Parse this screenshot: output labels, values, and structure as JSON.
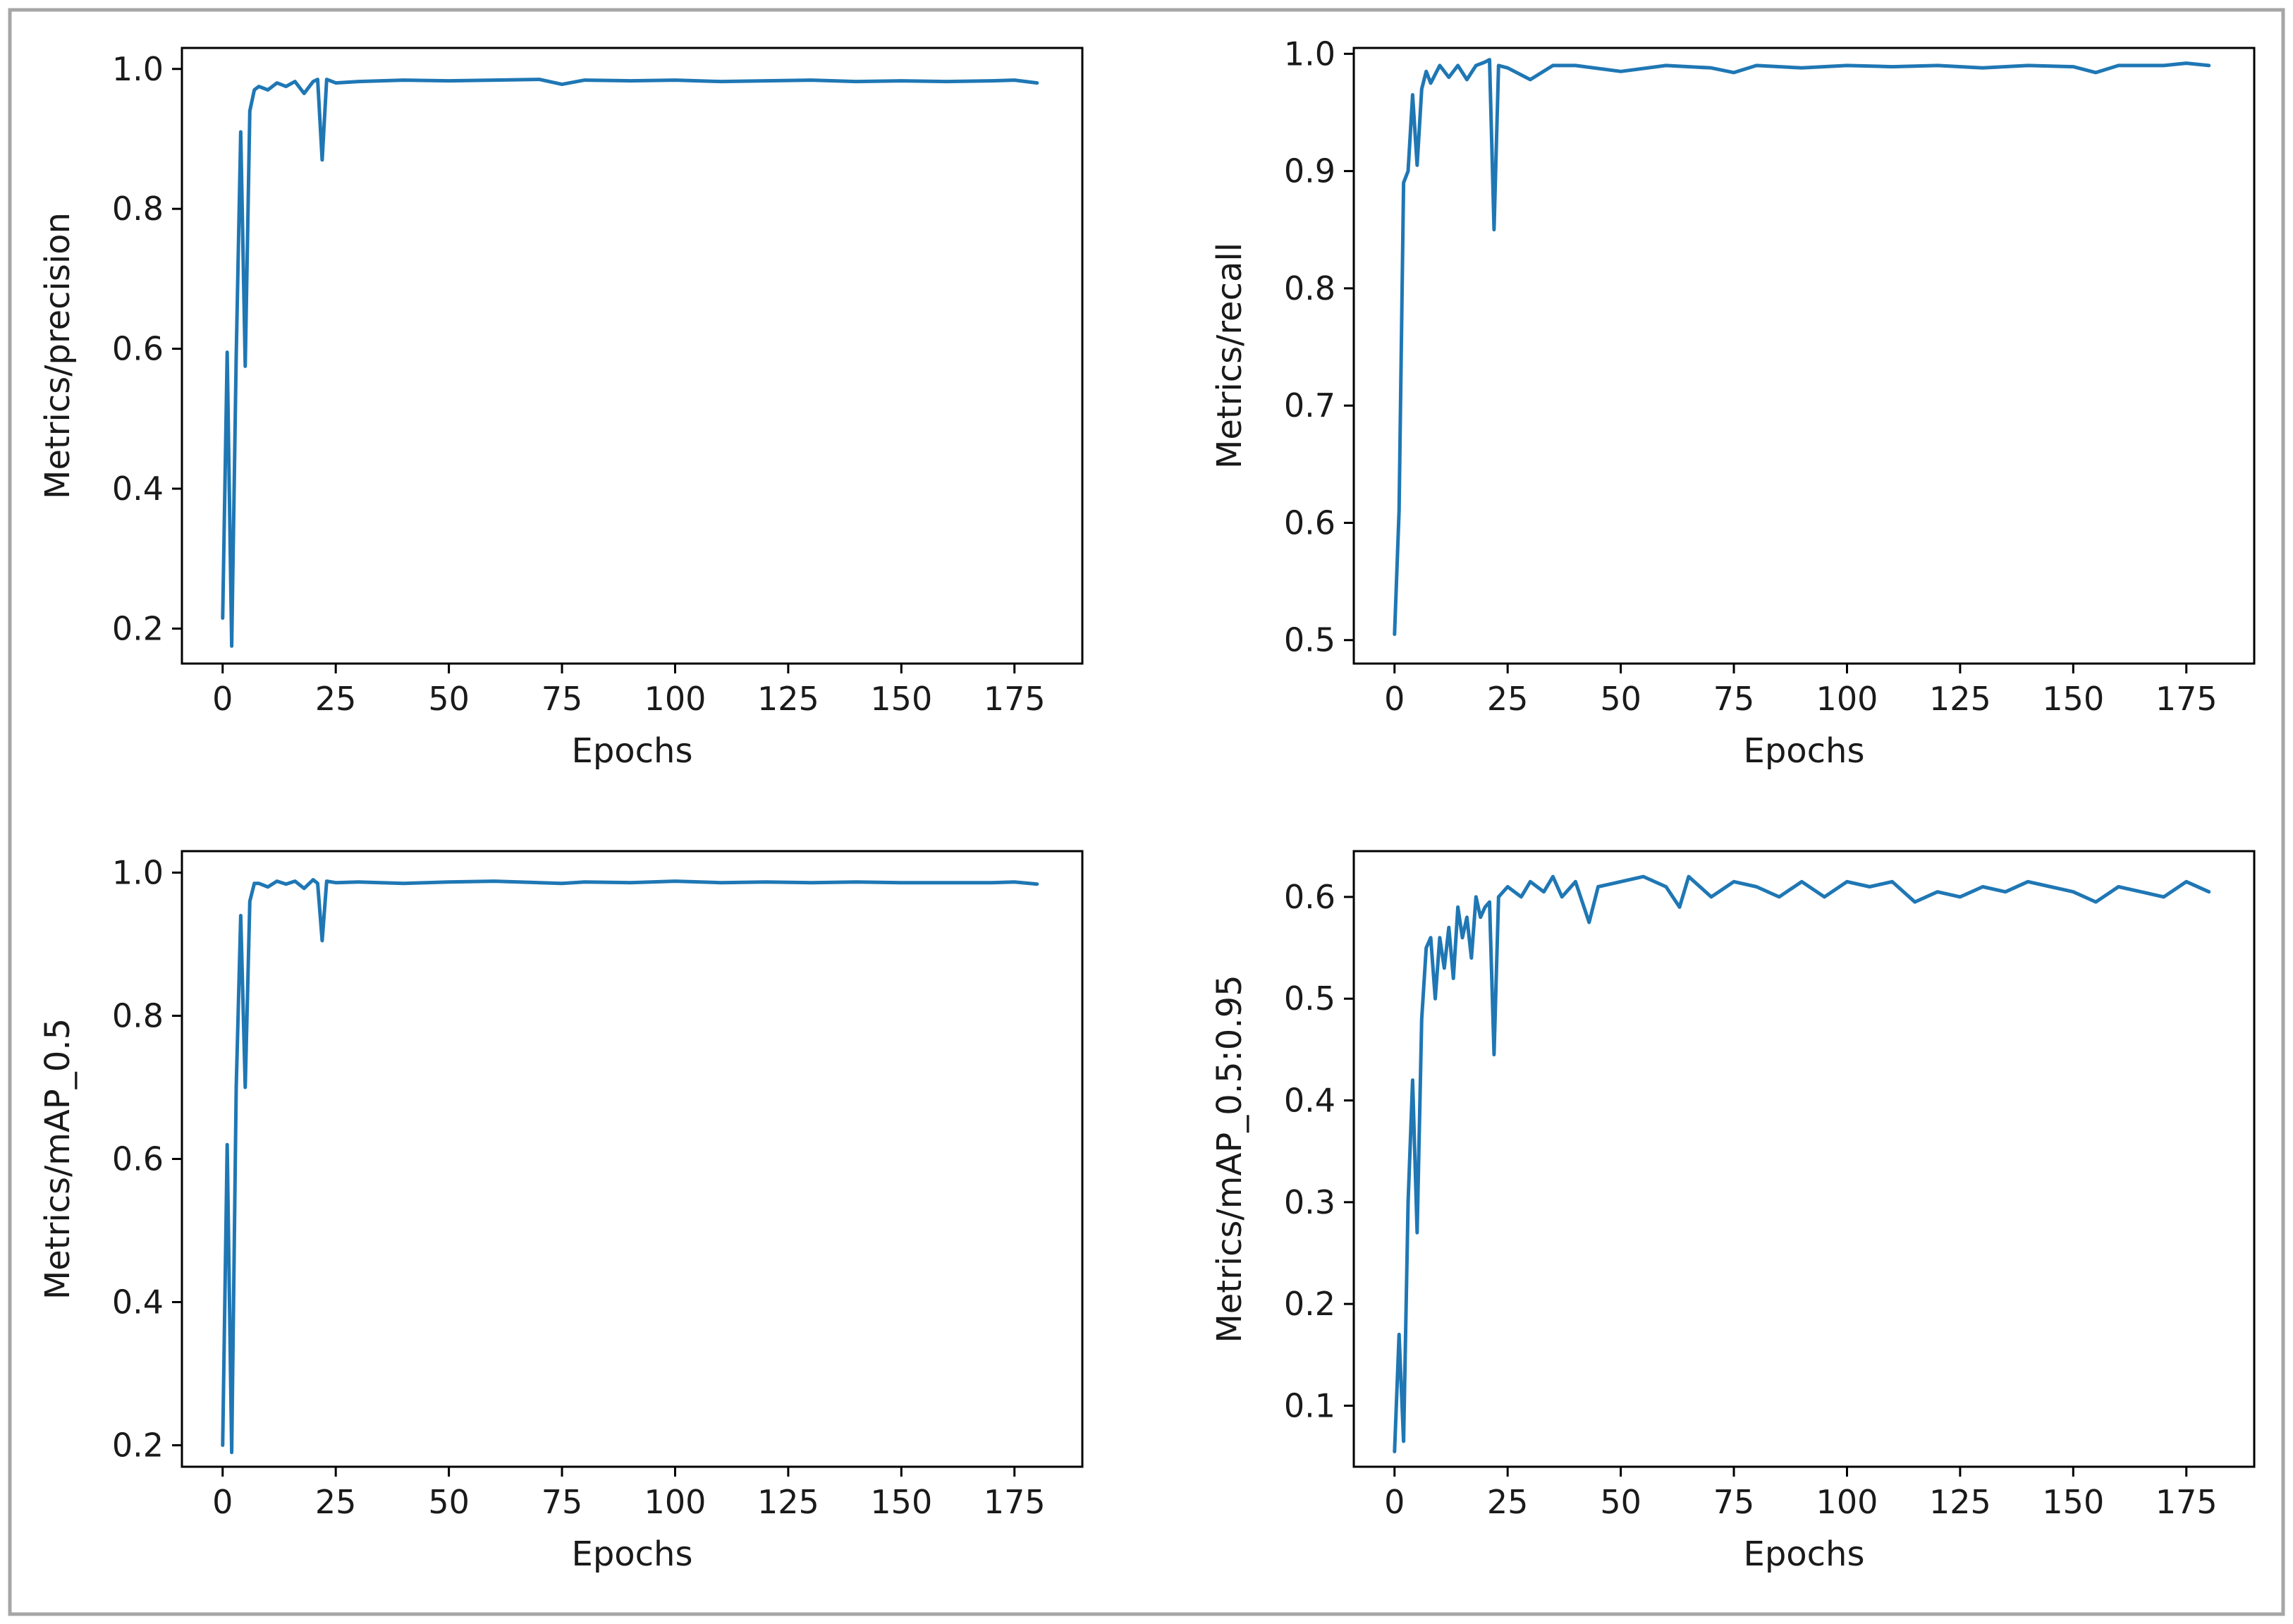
{
  "figure": {
    "colors": {
      "line": "#1f77b4",
      "axes": "#000000",
      "border": "#a6a6a6",
      "background": "#ffffff"
    }
  },
  "chart_data": [
    {
      "type": "line",
      "position": "top-left",
      "title": "",
      "xlabel": "Epochs",
      "ylabel": "Metrics/precision",
      "xlim": [
        -9,
        190
      ],
      "ylim": [
        0.15,
        1.03
      ],
      "xticks": [
        0,
        25,
        50,
        75,
        100,
        125,
        150,
        175
      ],
      "xtick_labels": [
        "0",
        "25",
        "50",
        "75",
        "100",
        "125",
        "150",
        "175"
      ],
      "yticks": [
        0.2,
        0.4,
        0.6,
        0.8,
        1.0
      ],
      "ytick_labels": [
        "0.2",
        "0.4",
        "0.6",
        "0.8",
        "1.0"
      ],
      "grid": false,
      "series": [
        {
          "name": "metrics/precision",
          "x": [
            0,
            1,
            2,
            3,
            4,
            5,
            6,
            7,
            8,
            10,
            12,
            14,
            16,
            18,
            20,
            21,
            22,
            23,
            25,
            30,
            40,
            50,
            60,
            70,
            75,
            80,
            90,
            100,
            110,
            120,
            130,
            140,
            150,
            160,
            170,
            175,
            180
          ],
          "values": [
            0.215,
            0.595,
            0.175,
            0.59,
            0.91,
            0.575,
            0.94,
            0.97,
            0.975,
            0.97,
            0.98,
            0.975,
            0.982,
            0.965,
            0.982,
            0.985,
            0.87,
            0.985,
            0.98,
            0.982,
            0.984,
            0.983,
            0.984,
            0.985,
            0.978,
            0.984,
            0.983,
            0.984,
            0.982,
            0.983,
            0.984,
            0.982,
            0.983,
            0.982,
            0.983,
            0.984,
            0.98
          ]
        }
      ]
    },
    {
      "type": "line",
      "position": "top-right",
      "title": "",
      "xlabel": "Epochs",
      "ylabel": "Metrics/recall",
      "xlim": [
        -9,
        190
      ],
      "ylim": [
        0.48,
        1.005
      ],
      "xticks": [
        0,
        25,
        50,
        75,
        100,
        125,
        150,
        175
      ],
      "xtick_labels": [
        "0",
        "25",
        "50",
        "75",
        "100",
        "125",
        "150",
        "175"
      ],
      "yticks": [
        0.5,
        0.6,
        0.7,
        0.8,
        0.9,
        1.0
      ],
      "ytick_labels": [
        "0.5",
        "0.6",
        "0.7",
        "0.8",
        "0.9",
        "1.0"
      ],
      "grid": false,
      "series": [
        {
          "name": "metrics/recall",
          "x": [
            0,
            1,
            2,
            3,
            4,
            5,
            6,
            7,
            8,
            10,
            12,
            14,
            16,
            18,
            20,
            21,
            22,
            23,
            25,
            30,
            35,
            40,
            50,
            60,
            70,
            75,
            80,
            90,
            100,
            110,
            120,
            130,
            140,
            150,
            155,
            160,
            170,
            175,
            180
          ],
          "values": [
            0.505,
            0.61,
            0.89,
            0.9,
            0.965,
            0.905,
            0.97,
            0.985,
            0.975,
            0.99,
            0.98,
            0.99,
            0.978,
            0.99,
            0.993,
            0.995,
            0.85,
            0.99,
            0.988,
            0.978,
            0.99,
            0.99,
            0.985,
            0.99,
            0.988,
            0.984,
            0.99,
            0.988,
            0.99,
            0.989,
            0.99,
            0.988,
            0.99,
            0.989,
            0.984,
            0.99,
            0.99,
            0.992,
            0.99
          ]
        }
      ]
    },
    {
      "type": "line",
      "position": "bottom-left",
      "title": "",
      "xlabel": "Epochs",
      "ylabel": "Metrics/mAP_0.5",
      "xlim": [
        -9,
        190
      ],
      "ylim": [
        0.17,
        1.03
      ],
      "xticks": [
        0,
        25,
        50,
        75,
        100,
        125,
        150,
        175
      ],
      "xtick_labels": [
        "0",
        "25",
        "50",
        "75",
        "100",
        "125",
        "150",
        "175"
      ],
      "yticks": [
        0.2,
        0.4,
        0.6,
        0.8,
        1.0
      ],
      "ytick_labels": [
        "0.2",
        "0.4",
        "0.6",
        "0.8",
        "1.0"
      ],
      "grid": false,
      "series": [
        {
          "name": "metrics/mAP_0.5",
          "x": [
            0,
            1,
            2,
            3,
            4,
            5,
            6,
            7,
            8,
            10,
            12,
            14,
            16,
            18,
            20,
            21,
            22,
            23,
            25,
            30,
            40,
            50,
            60,
            70,
            75,
            80,
            90,
            100,
            110,
            120,
            130,
            140,
            150,
            160,
            170,
            175,
            180
          ],
          "values": [
            0.2,
            0.62,
            0.19,
            0.7,
            0.94,
            0.7,
            0.96,
            0.985,
            0.985,
            0.98,
            0.988,
            0.984,
            0.988,
            0.978,
            0.99,
            0.985,
            0.905,
            0.988,
            0.986,
            0.987,
            0.985,
            0.987,
            0.988,
            0.986,
            0.985,
            0.987,
            0.986,
            0.988,
            0.986,
            0.987,
            0.986,
            0.987,
            0.986,
            0.986,
            0.986,
            0.987,
            0.984
          ]
        }
      ]
    },
    {
      "type": "line",
      "position": "bottom-right",
      "title": "",
      "xlabel": "Epochs",
      "ylabel": "Metrics/mAP_0.5:0.95",
      "xlim": [
        -9,
        190
      ],
      "ylim": [
        0.04,
        0.645
      ],
      "xticks": [
        0,
        25,
        50,
        75,
        100,
        125,
        150,
        175
      ],
      "xtick_labels": [
        "0",
        "25",
        "50",
        "75",
        "100",
        "125",
        "150",
        "175"
      ],
      "yticks": [
        0.1,
        0.2,
        0.3,
        0.4,
        0.5,
        0.6
      ],
      "ytick_labels": [
        "0.1",
        "0.2",
        "0.3",
        "0.4",
        "0.5",
        "0.6"
      ],
      "grid": false,
      "series": [
        {
          "name": "metrics/mAP_0.5:0.95",
          "x": [
            0,
            1,
            2,
            3,
            4,
            5,
            6,
            7,
            8,
            9,
            10,
            11,
            12,
            13,
            14,
            15,
            16,
            17,
            18,
            19,
            20,
            21,
            22,
            23,
            25,
            28,
            30,
            33,
            35,
            37,
            40,
            43,
            45,
            50,
            55,
            60,
            63,
            65,
            70,
            75,
            80,
            85,
            90,
            95,
            100,
            105,
            110,
            115,
            120,
            125,
            130,
            135,
            140,
            145,
            150,
            155,
            160,
            165,
            170,
            175,
            180
          ],
          "values": [
            0.055,
            0.17,
            0.065,
            0.3,
            0.42,
            0.27,
            0.48,
            0.55,
            0.56,
            0.5,
            0.56,
            0.53,
            0.57,
            0.52,
            0.59,
            0.56,
            0.58,
            0.54,
            0.6,
            0.58,
            0.59,
            0.595,
            0.445,
            0.6,
            0.61,
            0.6,
            0.615,
            0.605,
            0.62,
            0.6,
            0.615,
            0.575,
            0.61,
            0.615,
            0.62,
            0.61,
            0.59,
            0.62,
            0.6,
            0.615,
            0.61,
            0.6,
            0.615,
            0.6,
            0.615,
            0.61,
            0.615,
            0.595,
            0.605,
            0.6,
            0.61,
            0.605,
            0.615,
            0.61,
            0.605,
            0.595,
            0.61,
            0.605,
            0.6,
            0.615,
            0.605
          ]
        }
      ]
    }
  ]
}
